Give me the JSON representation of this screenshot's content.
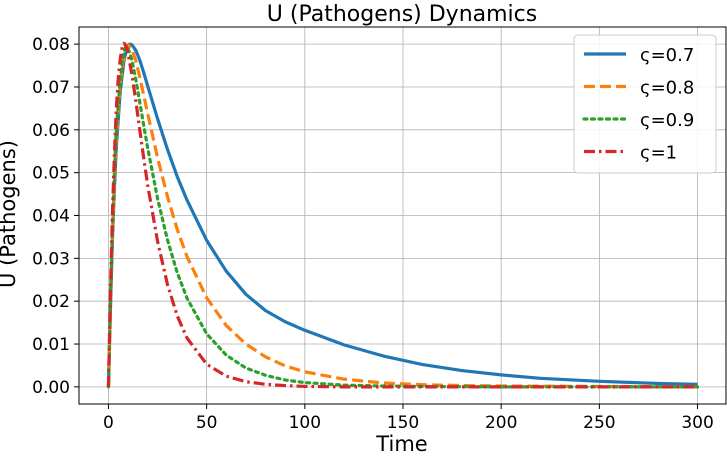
{
  "chart_data": {
    "type": "line",
    "title": "U (Pathogens) Dynamics",
    "xlabel": "Time",
    "ylabel": "U (Pathogens)",
    "xlim": [
      -15,
      315
    ],
    "ylim": [
      -0.004,
      0.084
    ],
    "xticks": [
      0,
      50,
      100,
      150,
      200,
      250,
      300
    ],
    "yticks": [
      0.0,
      0.01,
      0.02,
      0.03,
      0.04,
      0.05,
      0.06,
      0.07,
      0.08
    ],
    "ytick_labels": [
      "0.00",
      "0.01",
      "0.02",
      "0.03",
      "0.04",
      "0.05",
      "0.06",
      "0.07",
      "0.08"
    ],
    "grid": true,
    "legend_position": "top-right",
    "series": [
      {
        "name": "ς=0.7",
        "color": "#1f77b4",
        "style": "solid",
        "x": [
          0,
          1,
          2,
          3,
          4,
          6,
          8,
          10,
          11,
          12,
          14,
          16,
          18,
          20,
          25,
          30,
          35,
          40,
          50,
          60,
          70,
          80,
          90,
          100,
          120,
          140,
          150,
          160,
          180,
          200,
          220,
          250,
          280,
          300
        ],
        "y": [
          0.0,
          0.018,
          0.034,
          0.046,
          0.056,
          0.069,
          0.0765,
          0.0798,
          0.08,
          0.0798,
          0.0785,
          0.0762,
          0.0733,
          0.0702,
          0.0626,
          0.0555,
          0.0491,
          0.0436,
          0.0342,
          0.027,
          0.0216,
          0.0178,
          0.0152,
          0.0132,
          0.0098,
          0.0072,
          0.0062,
          0.0052,
          0.0038,
          0.0028,
          0.002,
          0.0013,
          0.0008,
          0.0006
        ]
      },
      {
        "name": "ς=0.8",
        "color": "#ff7f0e",
        "style": "dashed",
        "x": [
          0,
          1,
          2,
          3,
          4,
          6,
          8,
          9,
          10,
          12,
          14,
          16,
          18,
          20,
          25,
          30,
          35,
          40,
          50,
          60,
          70,
          80,
          90,
          100,
          120,
          140,
          150,
          160,
          180,
          200,
          250,
          300
        ],
        "y": [
          0.0,
          0.019,
          0.035,
          0.048,
          0.058,
          0.071,
          0.0775,
          0.0792,
          0.0798,
          0.0788,
          0.076,
          0.0722,
          0.068,
          0.0637,
          0.0535,
          0.0445,
          0.0368,
          0.0304,
          0.0208,
          0.0143,
          0.01,
          0.007,
          0.0049,
          0.0035,
          0.0018,
          0.0009,
          0.0007,
          0.0005,
          0.0003,
          0.0002,
          0.0001,
          0.0
        ]
      },
      {
        "name": "ς=0.9",
        "color": "#2ca02c",
        "style": "dotted",
        "x": [
          0,
          1,
          2,
          3,
          4,
          6,
          8,
          9,
          10,
          12,
          14,
          16,
          18,
          20,
          25,
          30,
          35,
          40,
          50,
          60,
          70,
          80,
          90,
          100,
          120,
          140,
          160,
          200,
          250,
          300
        ],
        "y": [
          0.0,
          0.02,
          0.037,
          0.05,
          0.06,
          0.072,
          0.0785,
          0.0795,
          0.079,
          0.0762,
          0.0716,
          0.0663,
          0.0609,
          0.0557,
          0.044,
          0.0344,
          0.0267,
          0.0207,
          0.0124,
          0.0074,
          0.0044,
          0.0027,
          0.0016,
          0.001,
          0.0004,
          0.0002,
          0.0001,
          0.0,
          0.0,
          0.0
        ]
      },
      {
        "name": "ς=1",
        "color": "#d62728",
        "style": "dashdot",
        "x": [
          0,
          1,
          2,
          3,
          4,
          5,
          6,
          7,
          8,
          9,
          10,
          12,
          14,
          16,
          18,
          20,
          25,
          30,
          35,
          40,
          50,
          60,
          70,
          80,
          90,
          100,
          120,
          150,
          200,
          250,
          300
        ],
        "y": [
          0.0,
          0.022,
          0.04,
          0.054,
          0.065,
          0.072,
          0.0765,
          0.0793,
          0.0802,
          0.0795,
          0.0778,
          0.0727,
          0.0665,
          0.0598,
          0.0533,
          0.047,
          0.034,
          0.024,
          0.0166,
          0.0114,
          0.0053,
          0.0025,
          0.0012,
          0.0006,
          0.0003,
          0.0001,
          0.0,
          0.0,
          0.0,
          0.0,
          0.0
        ]
      }
    ]
  }
}
